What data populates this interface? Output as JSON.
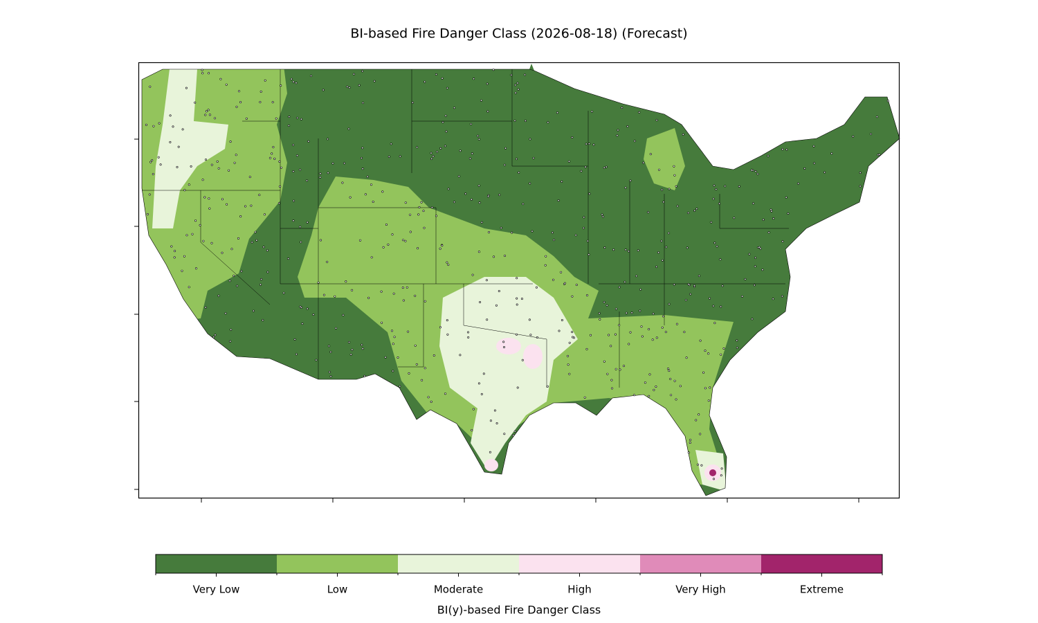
{
  "title": "BI-based Fire Danger Class (2026-08-18) (Forecast)",
  "colorbar": {
    "label": "BI(y)-based Fire Danger Class",
    "classes": [
      {
        "name": "Very Low",
        "color": "#467b3c"
      },
      {
        "name": "Low",
        "color": "#93c45c"
      },
      {
        "name": "Moderate",
        "color": "#e8f4da"
      },
      {
        "name": "High",
        "color": "#fbe2ef"
      },
      {
        "name": "Very High",
        "color": "#e08bb9"
      },
      {
        "name": "Extreme",
        "color": "#a2246b"
      }
    ]
  }
}
